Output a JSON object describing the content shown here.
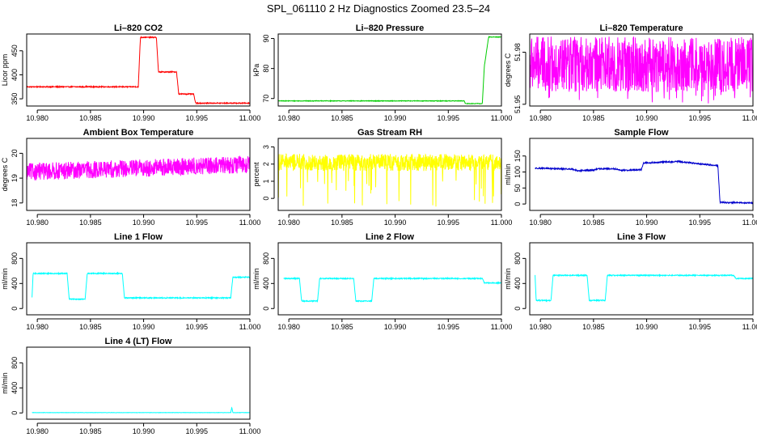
{
  "page_title": "SPL_061110  2 Hz Diagnostics Zoomed 23.5–24",
  "chart_data": [
    {
      "type": "line",
      "title": "Li–820 CO2",
      "ylabel": "Licor ppm",
      "color": "#ff0000",
      "xlim": [
        10.979,
        11.0
      ],
      "ylim": [
        335,
        485
      ],
      "xticks": [
        "10.980",
        "10.985",
        "10.990",
        "10.995",
        "11.000"
      ],
      "yticks": [
        350,
        400,
        450
      ],
      "series": [
        {
          "x": [
            10.979,
            10.9895,
            10.9897,
            10.9912,
            10.9914,
            10.9931,
            10.9933,
            10.9947,
            10.9949,
            11.0
          ],
          "y": [
            375,
            375,
            478,
            478,
            406,
            406,
            360,
            360,
            341,
            341
          ],
          "noise": 1
        }
      ]
    },
    {
      "type": "line",
      "title": "Li–820 Pressure",
      "ylabel": "kPa",
      "color": "#00cc00",
      "xlim": [
        10.979,
        11.0
      ],
      "ylim": [
        67.5,
        91.5
      ],
      "xticks": [
        "10.980",
        "10.985",
        "10.990",
        "10.995",
        "11.000"
      ],
      "yticks": [
        70,
        80,
        90
      ],
      "series": [
        {
          "x": [
            10.979,
            10.9965,
            10.9966,
            10.9982,
            10.9984,
            10.9988,
            11.0
          ],
          "y": [
            69.2,
            69.2,
            68.3,
            68.3,
            81,
            90.5,
            90.5
          ],
          "noise": 0.1
        }
      ]
    },
    {
      "type": "line",
      "title": "Li–820 Temperature",
      "ylabel": "degrees C",
      "color": "#ff00ff",
      "xlim": [
        10.979,
        11.0
      ],
      "ylim": [
        51.949,
        51.9905
      ],
      "xticks": [
        "10.980",
        "10.985",
        "10.990",
        "10.995",
        "11.000"
      ],
      "yticks": [
        51.95,
        51.98
      ],
      "series": [
        {
          "x": [
            10.979,
            11.0
          ],
          "y": [
            51.973,
            51.973
          ],
          "noise": 0.016,
          "spike_down": 51.95
        }
      ]
    },
    {
      "type": "line",
      "title": "Ambient Box Temperature",
      "ylabel": "degrees C",
      "color": "#ff00ff",
      "xlim": [
        10.979,
        11.0
      ],
      "ylim": [
        17.7,
        20.6
      ],
      "xticks": [
        "10.980",
        "10.985",
        "10.990",
        "10.995",
        "11.000"
      ],
      "yticks": [
        18.0,
        19.0,
        20.0
      ],
      "series": [
        {
          "x": [
            10.979,
            11.0
          ],
          "y": [
            19.25,
            19.55
          ],
          "noise": 0.35
        }
      ]
    },
    {
      "type": "line",
      "title": "Gas Stream RH",
      "ylabel": "percent",
      "color": "#ffff00",
      "xlim": [
        10.979,
        11.0
      ],
      "ylim": [
        -0.7,
        3.5
      ],
      "xticks": [
        "10.980",
        "10.985",
        "10.990",
        "10.995",
        "11.000"
      ],
      "yticks": [
        0,
        1,
        2,
        3
      ],
      "series": [
        {
          "x": [
            10.979,
            11.0
          ],
          "y": [
            2.1,
            2.1
          ],
          "noise": 0.5,
          "spike_down": -0.5
        }
      ]
    },
    {
      "type": "line",
      "title": "Sample Flow",
      "ylabel": "ml/min",
      "color": "#0000cc",
      "xlim": [
        10.979,
        11.0
      ],
      "ylim": [
        -20,
        205
      ],
      "xticks": [
        "10.980",
        "10.985",
        "10.990",
        "10.995",
        "11.000"
      ],
      "yticks": [
        0,
        50,
        100,
        150
      ],
      "series": [
        {
          "x": [
            10.9795,
            10.983,
            10.9835,
            10.985,
            10.9855,
            10.987,
            10.9875,
            10.9895,
            10.9897,
            10.993,
            10.9965,
            10.9967,
            10.9969,
            11.0
          ],
          "y": [
            112,
            109,
            104,
            106,
            110,
            110,
            105,
            107,
            128,
            133,
            120,
            120,
            5,
            3
          ],
          "noise": 2
        }
      ]
    },
    {
      "type": "line",
      "title": "Line 1 Flow",
      "ylabel": "ml/min",
      "color": "#00ffff",
      "xlim": [
        10.979,
        11.0
      ],
      "ylim": [
        -100,
        1050
      ],
      "xticks": [
        "10.980",
        "10.985",
        "10.990",
        "10.995",
        "11.000"
      ],
      "yticks": [
        0,
        400,
        800
      ],
      "series": [
        {
          "x": [
            10.9795,
            10.9796,
            10.9828,
            10.983,
            10.9845,
            10.9847,
            10.988,
            10.9882,
            10.9982,
            10.9984,
            11.0
          ],
          "y": [
            170,
            560,
            560,
            150,
            150,
            560,
            560,
            170,
            170,
            500,
            500
          ],
          "noise": 8
        }
      ]
    },
    {
      "type": "line",
      "title": "Line 2 Flow",
      "ylabel": "ml/min",
      "color": "#00ffff",
      "xlim": [
        10.979,
        11.0
      ],
      "ylim": [
        -100,
        1050
      ],
      "xticks": [
        "10.980",
        "10.985",
        "10.990",
        "10.995",
        "11.000"
      ],
      "yticks": [
        0,
        400,
        800
      ],
      "series": [
        {
          "x": [
            10.9795,
            10.981,
            10.9812,
            10.9827,
            10.9829,
            10.9861,
            10.9863,
            10.9878,
            10.988,
            10.9982,
            10.9984,
            11.0
          ],
          "y": [
            480,
            480,
            120,
            120,
            480,
            480,
            120,
            120,
            480,
            480,
            410,
            410
          ],
          "noise": 8
        }
      ]
    },
    {
      "type": "line",
      "title": "Line 3 Flow",
      "ylabel": "ml/min",
      "color": "#00ffff",
      "xlim": [
        10.979,
        11.0
      ],
      "ylim": [
        -100,
        1050
      ],
      "xticks": [
        "10.980",
        "10.985",
        "10.990",
        "10.995",
        "11.000"
      ],
      "yticks": [
        0,
        400,
        800
      ],
      "series": [
        {
          "x": [
            10.9795,
            10.9796,
            10.981,
            10.9812,
            10.9844,
            10.9846,
            10.9861,
            10.9863,
            10.9982,
            10.9984,
            11.0
          ],
          "y": [
            530,
            130,
            130,
            530,
            530,
            130,
            130,
            530,
            530,
            480,
            480
          ],
          "noise": 8
        }
      ]
    },
    {
      "type": "line",
      "title": "Line 4 (LT) Flow",
      "ylabel": "ml/min",
      "color": "#00ffff",
      "xlim": [
        10.979,
        11.0
      ],
      "ylim": [
        -100,
        1050
      ],
      "xticks": [
        "10.980",
        "10.985",
        "10.990",
        "10.995",
        "11.000"
      ],
      "yticks": [
        0,
        400,
        800
      ],
      "series": [
        {
          "x": [
            10.9795,
            10.9982,
            10.9983,
            10.9984,
            11.0
          ],
          "y": [
            5,
            5,
            90,
            5,
            5
          ],
          "noise": 2
        }
      ]
    }
  ]
}
